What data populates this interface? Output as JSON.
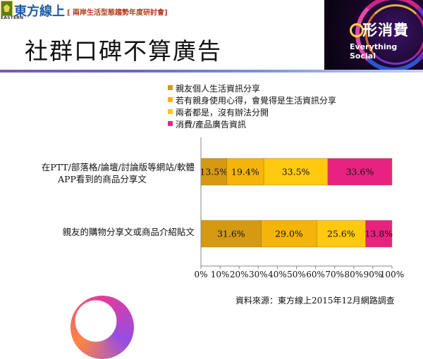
{
  "header": {
    "brand": "東方線上",
    "logo_sub": "EASTERN",
    "subtitle": "[ 兩岸生活型態趨勢年度研討會]"
  },
  "badge": {
    "title": "形消費",
    "subtitle": "Everything Social"
  },
  "slide_title": "社群口碑不算廣告",
  "source": "資料來源：東方線上2015年12月網路調查",
  "chart_data": {
    "type": "bar",
    "orientation": "horizontal",
    "stacked": true,
    "categories": [
      "在PTT/部落格/論壇/討論版等網站/軟體APP看到的商品分享文",
      "親友的購物分享文或商品介紹貼文"
    ],
    "category_lines": [
      [
        "在PTT/部落格/論壇/討論版等網站/軟體",
        "APP看到的商品分享文"
      ],
      [
        "親友的購物分享文或商品介紹貼文"
      ]
    ],
    "series": [
      {
        "name": "親友個人生活資訊分享",
        "color": "#d49a12",
        "values": [
          13.5,
          31.6
        ],
        "labels": [
          "13.5%",
          "31.6%"
        ]
      },
      {
        "name": "若有親身使用心得，會覺得是生活資訊分享",
        "color": "#f5b40a",
        "values": [
          19.4,
          29.0
        ],
        "labels": [
          "19.4%",
          "29.0%"
        ]
      },
      {
        "name": "兩者都是，沒有辦法分開",
        "color": "#ffc90f",
        "values": [
          33.5,
          25.6
        ],
        "labels": [
          "33.5%",
          "25.6%"
        ]
      },
      {
        "name": "消費/產品廣告資訊",
        "color": "#e8237f",
        "values": [
          33.6,
          13.8
        ],
        "labels": [
          "33.6%",
          "13.8%"
        ]
      }
    ],
    "xlim": [
      0,
      100
    ],
    "xticks": [
      "0%",
      "10%",
      "20%",
      "30%",
      "40%",
      "50%",
      "60%",
      "70%",
      "80%",
      "90%",
      "100%"
    ],
    "grid": false,
    "legend": "top"
  }
}
